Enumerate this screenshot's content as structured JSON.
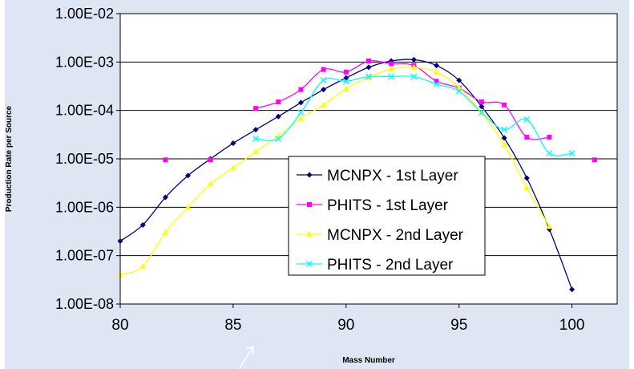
{
  "chart_data": {
    "type": "line",
    "title": "",
    "xlabel": "Mass Number",
    "ylabel": "Production Rate per Source",
    "xlim": [
      80,
      102
    ],
    "ylim": [
      1e-08,
      0.01
    ],
    "yscale": "log",
    "x_ticks": [
      80,
      85,
      90,
      95,
      100
    ],
    "y_tick_labels": [
      "1.00E-02",
      "1.00E-03",
      "1.00E-04",
      "1.00E-05",
      "1.00E-06",
      "1.00E-07",
      "1.00E-08"
    ],
    "grid": "horizontal",
    "legend_position": "center-right",
    "background_colors": {
      "plot": "#ffffff",
      "frame": "#dde6f2",
      "page": "#ffffff"
    },
    "series": [
      {
        "name": "MCNPX - 1st Layer",
        "color": "#000080",
        "marker": "diamond",
        "x": [
          80,
          81,
          82,
          83,
          84,
          85,
          86,
          87,
          88,
          89,
          90,
          91,
          92,
          93,
          94,
          95,
          96,
          97,
          98,
          99,
          100
        ],
        "values": [
          2e-07,
          4.3e-07,
          1.6e-06,
          4.5e-06,
          1e-05,
          2.1e-05,
          4e-05,
          7.5e-05,
          0.000145,
          0.00027,
          0.00047,
          0.00078,
          0.00105,
          0.00112,
          0.00085,
          0.00042,
          0.00012,
          2.7e-05,
          4e-06,
          3.5e-07,
          2e-08
        ]
      },
      {
        "name": "PHITS - 1st Layer",
        "color": "#ff00ff",
        "marker": "square",
        "x": [
          82,
          84,
          86,
          87,
          88,
          89,
          90,
          91,
          92,
          93,
          94,
          95,
          96,
          97,
          98,
          99,
          101
        ],
        "values": [
          9.5e-06,
          9.5e-06,
          0.00011,
          0.00015,
          0.00027,
          0.0007,
          0.00062,
          0.00105,
          0.00092,
          0.00085,
          0.0004,
          0.00029,
          0.00015,
          0.00013,
          2.8e-05,
          2.8e-05,
          9.5e-06
        ]
      },
      {
        "name": "MCNPX - 2nd Layer",
        "color": "#ffff00",
        "marker": "triangle",
        "x": [
          80,
          81,
          82,
          83,
          84,
          85,
          86,
          87,
          88,
          89,
          90,
          91,
          92,
          93,
          94,
          95,
          96,
          97,
          98,
          99
        ],
        "values": [
          4e-08,
          6e-08,
          3e-07,
          1e-06,
          3e-06,
          6.5e-06,
          1.4e-05,
          3e-05,
          6.8e-05,
          0.00013,
          0.00028,
          0.00048,
          0.00072,
          0.00078,
          0.00062,
          0.0003,
          9e-05,
          2e-05,
          2.5e-06,
          4e-07
        ]
      },
      {
        "name": "PHITS - 2nd Layer",
        "color": "#00ffff",
        "marker": "x",
        "x": [
          86,
          87,
          88,
          89,
          90,
          91,
          92,
          93,
          94,
          95,
          96,
          97,
          98,
          99,
          100
        ],
        "values": [
          2.6e-05,
          2.6e-05,
          9e-05,
          0.00042,
          0.0004,
          0.0005,
          0.0005,
          0.0005,
          0.00035,
          0.00025,
          9e-05,
          4e-05,
          6.5e-05,
          1.3e-05,
          1.3e-05
        ]
      }
    ]
  }
}
